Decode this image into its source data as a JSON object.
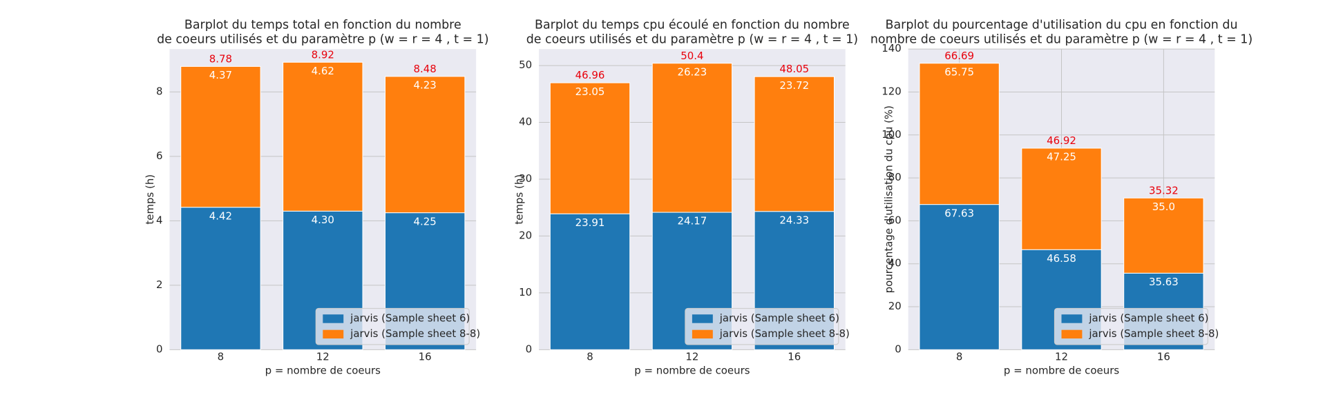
{
  "chart_data": [
    {
      "type": "bar",
      "stacked": true,
      "title": [
        "Barplot du temps total en fonction du nombre",
        "de coeurs utilisés et du paramètre p (w = r = 4 , t = 1)"
      ],
      "xlabel": "p = nombre de coeurs",
      "ylabel": "temps (h)",
      "categories": [
        "8",
        "12",
        "16"
      ],
      "series": [
        {
          "name": "jarvis (Sample sheet 6)",
          "color": "#1f77b4",
          "values": [
            4.42,
            4.3,
            4.25
          ],
          "value_labels": [
            "4.42",
            "4.30",
            "4.25"
          ]
        },
        {
          "name": "jarvis (Sample sheet 8-8)",
          "color": "#ff7f0e",
          "values": [
            4.37,
            4.62,
            4.23
          ]
        }
      ],
      "totals": {
        "color": "#e8000b",
        "values": [
          8.78,
          8.92,
          8.48
        ]
      },
      "ylim": [
        0,
        9.33
      ],
      "yticks": [
        0,
        2,
        4,
        6,
        8
      ],
      "grid": true,
      "xgrid": false,
      "legend": "lower right"
    },
    {
      "type": "bar",
      "stacked": true,
      "title": [
        "Barplot du temps cpu écoulé en fonction du nombre",
        "de coeurs utilisés et du paramètre p (w = r = 4 , t = 1)"
      ],
      "xlabel": "p = nombre de coeurs",
      "ylabel": "temps (h)",
      "categories": [
        "8",
        "12",
        "16"
      ],
      "series": [
        {
          "name": "jarvis (Sample sheet 6)",
          "color": "#1f77b4",
          "values": [
            23.91,
            24.17,
            24.33
          ]
        },
        {
          "name": "jarvis (Sample sheet 8-8)",
          "color": "#ff7f0e",
          "values": [
            23.05,
            26.23,
            23.72
          ]
        }
      ],
      "totals": {
        "color": "#e8000b",
        "values": [
          46.96,
          50.4,
          48.05
        ]
      },
      "ylim": [
        0,
        52.9
      ],
      "yticks": [
        0,
        10,
        20,
        30,
        40,
        50
      ],
      "grid": true,
      "xgrid": false,
      "legend": "lower right"
    },
    {
      "type": "bar",
      "stacked": true,
      "title": [
        "Barplot du pourcentage d'utilisation du cpu en fonction du",
        "nombre de coeurs utilisés et du paramètre p (w = r = 4 , t = 1)"
      ],
      "xlabel": "p = nombre de coeurs",
      "ylabel": "pourcentage d'utilisation du cpu (%)",
      "categories": [
        "8",
        "12",
        "16"
      ],
      "series": [
        {
          "name": "jarvis (Sample sheet 6)",
          "color": "#1f77b4",
          "values": [
            67.63,
            46.58,
            35.63
          ]
        },
        {
          "name": "jarvis (Sample sheet 8-8)",
          "color": "#ff7f0e",
          "values": [
            65.75,
            47.25,
            35.0
          ],
          "value_labels": [
            "65.75",
            "47.25",
            "35.0"
          ]
        }
      ],
      "totals": {
        "color": "#e8000b",
        "values": [
          66.69,
          46.92,
          35.32
        ]
      },
      "ylim": [
        0,
        140
      ],
      "yticks": [
        0,
        20,
        40,
        60,
        80,
        100,
        120,
        140
      ],
      "grid": true,
      "xgrid": true,
      "legend": "lower right"
    }
  ]
}
